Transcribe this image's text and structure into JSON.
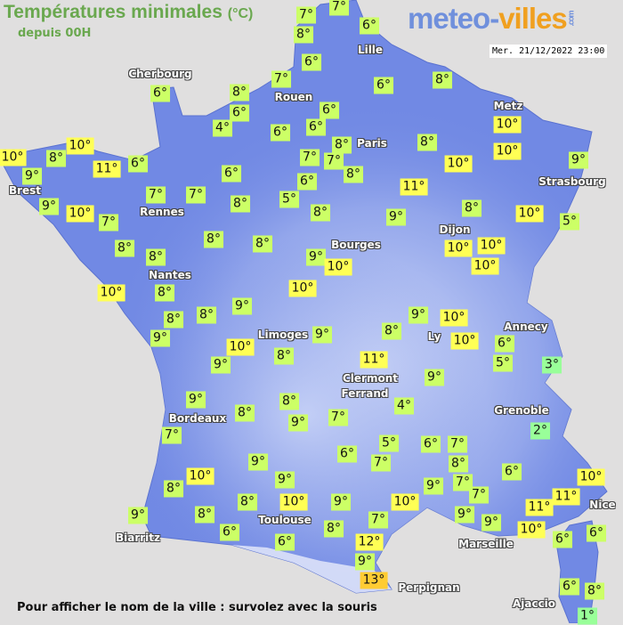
{
  "header": {
    "title": "Températures minimales",
    "unit": "(°C)",
    "subtitle": "depuis 00H",
    "logo_part1": "meteo-",
    "logo_part2": "villes",
    "logo_suffix": ".com",
    "datetime": "Mer. 21/12/2022 23:00"
  },
  "footer": {
    "hint": "Pour afficher le nom de la ville : survolez avec la souris"
  },
  "colors": {
    "title_green": "#6aa84f",
    "land_blue": "#7189e4",
    "sea": "#e0dfdf",
    "temp_cold": "#99ff99",
    "temp_mild": "#ccff66",
    "temp_warm": "#ffff55",
    "temp_hot": "#ffcc33"
  },
  "cities": [
    "Cherbourg",
    "Rouen",
    "Lille",
    "Paris",
    "Metz",
    "Brest",
    "Rennes",
    "Strasbourg",
    "Dijon",
    "Bourges",
    "Nantes",
    "Limoges",
    "Annecy",
    "Ly",
    "Clermont",
    "Ferrand",
    "Bordeaux",
    "Grenoble",
    "Nice",
    "Toulouse",
    "Biarritz",
    "Marseille",
    "Perpignan",
    "Ajaccio"
  ],
  "temperatures": [
    "7°",
    "7°",
    "8°",
    "6°",
    "6°",
    "7°",
    "6°",
    "8°",
    "6°",
    "8°",
    "6°",
    "4°",
    "6°",
    "6°",
    "6°",
    "8°",
    "8°",
    "10°",
    "10°",
    "10°",
    "10°",
    "8°",
    "9°",
    "11°",
    "6°",
    "7°",
    "7°",
    "6°",
    "6°",
    "8°",
    "10°",
    "9°",
    "11°",
    "9°",
    "7°",
    "7°",
    "8°",
    "5°",
    "10°",
    "7°",
    "8°",
    "9°",
    "8°",
    "10°",
    "5°",
    "8°",
    "8°",
    "8°",
    "8°",
    "9°",
    "10°",
    "10°",
    "10°",
    "10°",
    "10°",
    "8°",
    "10°",
    "8°",
    "8°",
    "9°",
    "9°",
    "9°",
    "10°",
    "9°",
    "8°",
    "10°",
    "6°",
    "5°",
    "3°",
    "10°",
    "9°",
    "8°",
    "11°",
    "9°",
    "9°",
    "8°",
    "8°",
    "9°",
    "4°",
    "7°",
    "7°",
    "2°",
    "5°",
    "6°",
    "7°",
    "6°",
    "7°",
    "8°",
    "9°",
    "10°",
    "6°",
    "8°",
    "9°",
    "7°",
    "10°",
    "11°",
    "9°",
    "8°",
    "10°",
    "9°",
    "10°",
    "7°",
    "9°",
    "9°",
    "11°",
    "9°",
    "8°",
    "7°",
    "10°",
    "6°",
    "8°",
    "6°",
    "6°",
    "6°",
    "12°",
    "9°",
    "13°",
    "6°",
    "8°",
    "1°"
  ]
}
